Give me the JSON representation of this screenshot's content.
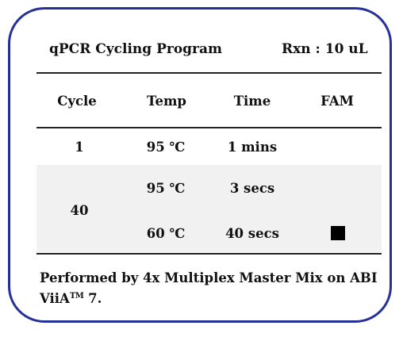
{
  "header": {
    "title": "qPCR Cycling Program",
    "reaction": "Rxn : 10 uL"
  },
  "table": {
    "columns": [
      "Cycle",
      "Temp",
      "Time",
      "FAM"
    ],
    "rows": [
      {
        "cycle": "1",
        "temp": "95 ℃",
        "time": "1 mins",
        "fam": ""
      },
      {
        "cycle": "40",
        "temp": "95 ℃",
        "time": "3 secs",
        "fam": ""
      },
      {
        "cycle": "",
        "temp": "60 ℃",
        "time": "40 secs",
        "fam": "detection"
      }
    ]
  },
  "footer": {
    "text_before": "Performed by 4x Multiplex Master Mix on ABI ViiA",
    "trademark": "TM",
    "text_after": " 7."
  },
  "colors": {
    "border": "#25309a",
    "shade": "#f1f1f1",
    "detection_marker": "#000000"
  }
}
